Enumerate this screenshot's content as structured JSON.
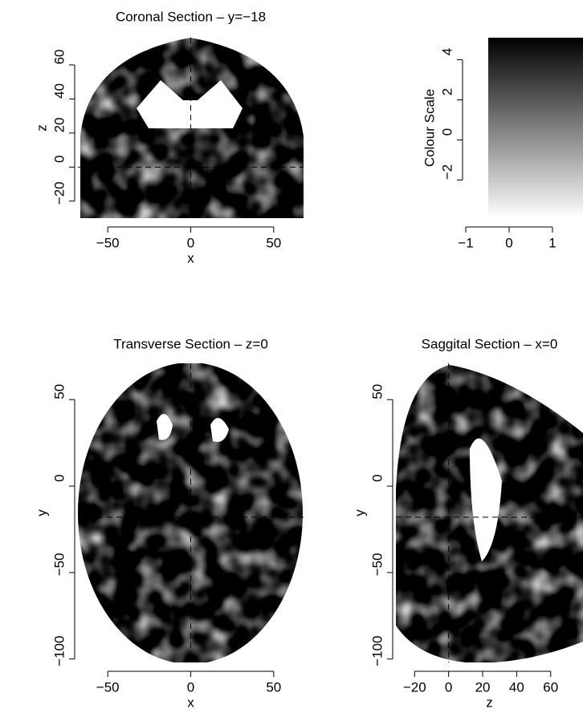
{
  "chart_data": [
    {
      "type": "heatmap",
      "title": "Coronal Section – y=−18",
      "xlabel": "x",
      "ylabel": "z",
      "xlim": [
        -68,
        68
      ],
      "ylim": [
        -30,
        76
      ],
      "xticks": [
        {
          "value": -50,
          "label": "−50"
        },
        0,
        50
      ],
      "yticks": [
        {
          "value": -20,
          "label": "−20"
        },
        0,
        20,
        40,
        60
      ],
      "crosshair": {
        "x": 0,
        "y": 0
      }
    },
    {
      "type": "colorbar",
      "ylabel": "Colour Scale",
      "xlim": [
        -1,
        1
      ],
      "ylim": [
        -3.9,
        5.1
      ],
      "xticks": [
        {
          "value": -1,
          "label": "−1"
        },
        0,
        1
      ],
      "yticks": [
        {
          "value": -2,
          "label": "−2"
        },
        0,
        2,
        4
      ],
      "colors": [
        "#ffffff",
        "#000000"
      ]
    },
    {
      "type": "heatmap",
      "title": "Transverse Section – z=0",
      "xlabel": "x",
      "ylabel": "y",
      "xlim": [
        -68,
        68
      ],
      "ylim": [
        -102,
        71
      ],
      "xticks": [
        {
          "value": -50,
          "label": "−50"
        },
        0,
        50
      ],
      "yticks": [
        {
          "value": -100,
          "label": "−100"
        },
        {
          "value": -50,
          "label": "−50"
        },
        0,
        50
      ],
      "crosshair": {
        "x": 0,
        "y": -18
      }
    },
    {
      "type": "heatmap",
      "title": "Saggital Section – x=0",
      "xlabel": "z",
      "ylabel": "y",
      "xlim": [
        -31,
        79
      ],
      "ylim": [
        -102,
        71
      ],
      "xticks": [
        {
          "value": -20,
          "label": "−20"
        },
        0,
        20,
        40,
        60
      ],
      "yticks": [
        {
          "value": -100,
          "label": "−100"
        },
        {
          "value": -50,
          "label": "−50"
        },
        0,
        50
      ],
      "crosshair": {
        "x": 0,
        "y": -18
      }
    }
  ]
}
